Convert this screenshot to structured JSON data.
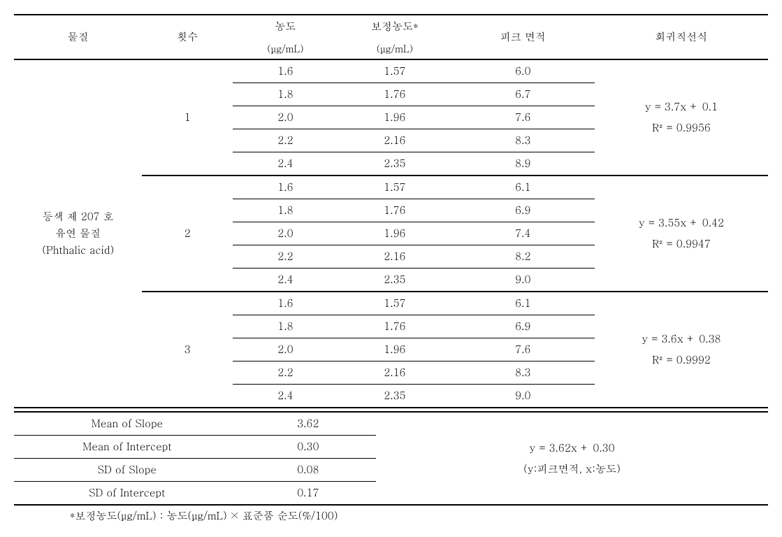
{
  "headers": {
    "substance": "물질",
    "count": "횟수",
    "conc_label": "농도",
    "conc_unit": "(μg/mL)",
    "corr_label": "보정농도*",
    "corr_unit": "(μg/mL)",
    "peak": "피크 면적",
    "regression": "회귀직선식"
  },
  "substance": {
    "line1": "등색 제 207 호",
    "line2": "유연 물질",
    "line3": "(Phthalic acid)"
  },
  "trials": [
    {
      "num": "1",
      "rows": [
        {
          "conc": "1.6",
          "corr": "1.57",
          "peak": "6.0"
        },
        {
          "conc": "1.8",
          "corr": "1.76",
          "peak": "6.7"
        },
        {
          "conc": "2.0",
          "corr": "1.96",
          "peak": "7.6"
        },
        {
          "conc": "2.2",
          "corr": "2.16",
          "peak": "8.3"
        },
        {
          "conc": "2.4",
          "corr": "2.35",
          "peak": "8.9"
        }
      ],
      "eq": "y = 3.7x + 0.1",
      "r2": "R² = 0.9956"
    },
    {
      "num": "2",
      "rows": [
        {
          "conc": "1.6",
          "corr": "1.57",
          "peak": "6.1"
        },
        {
          "conc": "1.8",
          "corr": "1.76",
          "peak": "6.9"
        },
        {
          "conc": "2.0",
          "corr": "1.96",
          "peak": "7.4"
        },
        {
          "conc": "2.2",
          "corr": "2.16",
          "peak": "8.2"
        },
        {
          "conc": "2.4",
          "corr": "2.35",
          "peak": "9.0"
        }
      ],
      "eq": "y = 3.55x + 0.42",
      "r2": "R² = 0.9947"
    },
    {
      "num": "3",
      "rows": [
        {
          "conc": "1.6",
          "corr": "1.57",
          "peak": "6.1"
        },
        {
          "conc": "1.8",
          "corr": "1.76",
          "peak": "6.9"
        },
        {
          "conc": "2.0",
          "corr": "1.96",
          "peak": "7.6"
        },
        {
          "conc": "2.2",
          "corr": "2.16",
          "peak": "8.3"
        },
        {
          "conc": "2.4",
          "corr": "2.35",
          "peak": "9.0"
        }
      ],
      "eq": "y = 3.6x + 0.38",
      "r2": "R² = 0.9992"
    }
  ],
  "summary": {
    "mean_slope_label": "Mean of Slope",
    "mean_slope": "3.62",
    "mean_intercept_label": "Mean of Intercept",
    "mean_intercept": "0.30",
    "sd_slope_label": "SD of Slope",
    "sd_slope": "0.08",
    "sd_intercept_label": "SD of Intercept",
    "sd_intercept": "0.17",
    "eq": "y = 3.62x + 0.30",
    "eq_note": "(y:피크면적, x:농도)"
  },
  "footnote": "*보정농도(μg/mL) : 농도(μg/mL) × 표준품 순도(%/100)"
}
